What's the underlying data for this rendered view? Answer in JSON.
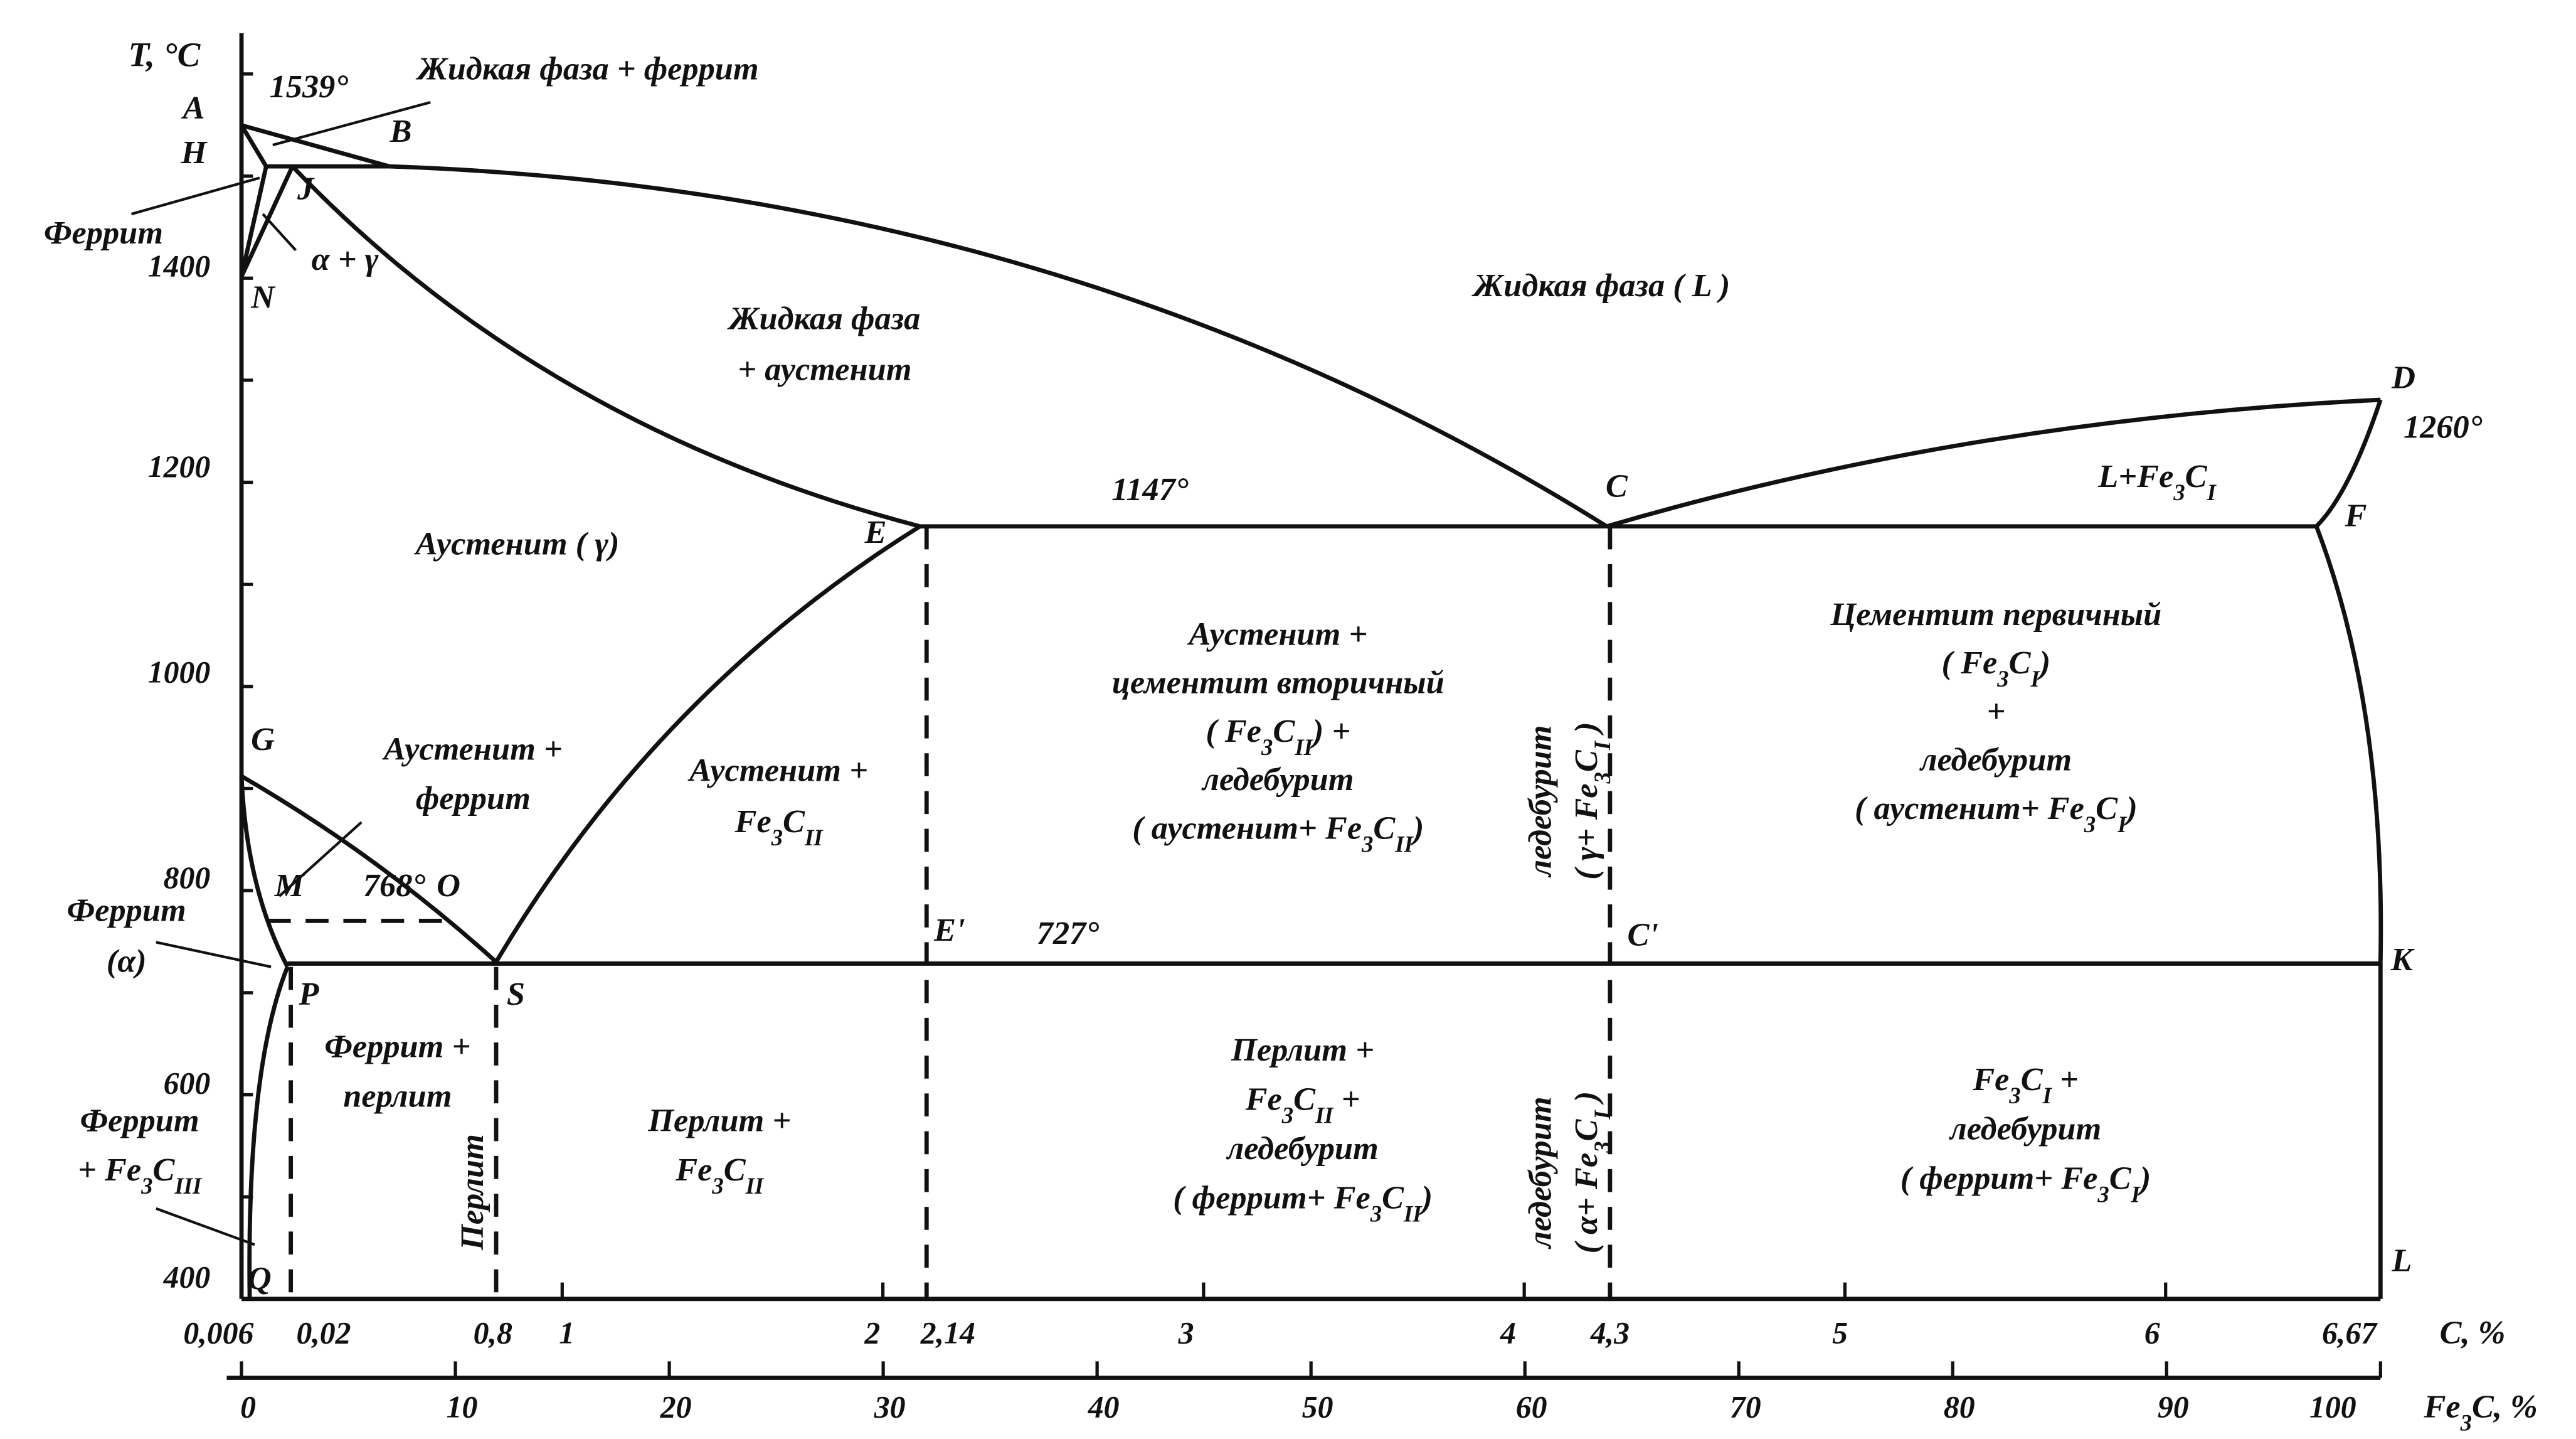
{
  "axes": {
    "temperature": {
      "title": "T, °C",
      "ticks": [
        "1400",
        "1200",
        "1000",
        "800",
        "600",
        "400"
      ]
    },
    "carbon": {
      "title": "C, %",
      "ticks": [
        "0,006",
        "0,02",
        "0,8",
        "1",
        "2",
        "2,14",
        "3",
        "4",
        "4,3",
        "5",
        "6",
        "6,67"
      ]
    },
    "cementite": {
      "title": [
        "Fe",
        "3",
        "C, %"
      ],
      "ticks": [
        "0",
        "10",
        "20",
        "30",
        "40",
        "50",
        "60",
        "70",
        "80",
        "90",
        "100"
      ]
    }
  },
  "points": {
    "A": "A",
    "H": "H",
    "B": "B",
    "J": "J",
    "N": "N",
    "D": "D",
    "C": "C",
    "E": "E",
    "F": "F",
    "G": "G",
    "M": "M",
    "O": "O",
    "P": "P",
    "S": "S",
    "E1": "E'",
    "C1": "C'",
    "K": "K",
    "L": "L",
    "Q": "Q"
  },
  "temperatures": {
    "t1539": "1539°",
    "t1147": "1147°",
    "t727": "727°",
    "t768": "768°",
    "t1260": "1260°"
  },
  "regions": {
    "liquid_ferrite": [
      [
        "Жидкая фаза + феррит"
      ]
    ],
    "liquid": [
      [
        "Жидкая фаза ( L )"
      ]
    ],
    "liquid_austenite": [
      [
        "Жидкая фаза"
      ],
      [
        "+ аустенит"
      ]
    ],
    "ferrite_top": [
      [
        "Феррит"
      ]
    ],
    "alpha_gamma": [
      [
        "α + γ"
      ]
    ],
    "austenite": [
      [
        "Аустенит ( γ)"
      ]
    ],
    "l_fe3c": [
      [
        "L+Fe",
        "3",
        "C",
        "I"
      ]
    ],
    "aust_cem_led": [
      [
        "Аустенит +"
      ],
      [
        "цементит вторичный"
      ],
      [
        "( Fe",
        "3",
        "C",
        "II",
        ") +"
      ],
      [
        "ледебурит"
      ],
      [
        "( аустенит+ Fe",
        "3",
        "C",
        "II",
        ")"
      ]
    ],
    "cem_prim": [
      [
        "Цементит первичный"
      ],
      [
        "( Fe",
        "3",
        "C",
        "I",
        ")"
      ],
      [
        "+"
      ],
      [
        "ледебурит"
      ],
      [
        "( аустенит+ Fe",
        "3",
        "C",
        "I",
        ")"
      ]
    ],
    "aust_ferrite": [
      [
        "Аустенит +"
      ],
      [
        "феррит"
      ]
    ],
    "aust_fe3cii": [
      [
        "Аустенит +"
      ],
      [
        "Fe",
        "3",
        "C",
        "II"
      ]
    ],
    "ferrite_alpha": [
      [
        "Феррит"
      ],
      [
        "(α)"
      ]
    ],
    "ferrite_perlite": [
      [
        "Феррит +"
      ],
      [
        "перлит"
      ]
    ],
    "perlite_fe3cii": [
      [
        "Перлит +"
      ],
      [
        "Fe",
        "3",
        "C",
        "II"
      ]
    ],
    "perlite_vert": [
      [
        "Перлит"
      ]
    ],
    "perlite_fe3cii_led": [
      [
        "Перлит +"
      ],
      [
        "Fe",
        "3",
        "C",
        "II",
        "  +"
      ],
      [
        "ледебурит"
      ],
      [
        "( феррит+ Fe",
        "3",
        "C",
        "II",
        ")"
      ]
    ],
    "fe3ci_led": [
      [
        "Fe",
        "3",
        "C",
        "I",
        " +"
      ],
      [
        "ледебурит"
      ],
      [
        "( феррит+ Fe",
        "3",
        "C",
        "I",
        ")"
      ]
    ],
    "ferrite_fe3ciii": [
      [
        "Феррит"
      ],
      [
        "+ Fe",
        "3",
        "C",
        "III"
      ]
    ],
    "led_upper": [
      [
        "ледебурит"
      ],
      [
        "( γ+ Fe",
        "3",
        "C",
        "I",
        " )"
      ]
    ],
    "led_lower": [
      [
        "ледебурит"
      ],
      [
        "( α+ Fe",
        "3",
        "C",
        "I",
        " )"
      ]
    ]
  }
}
